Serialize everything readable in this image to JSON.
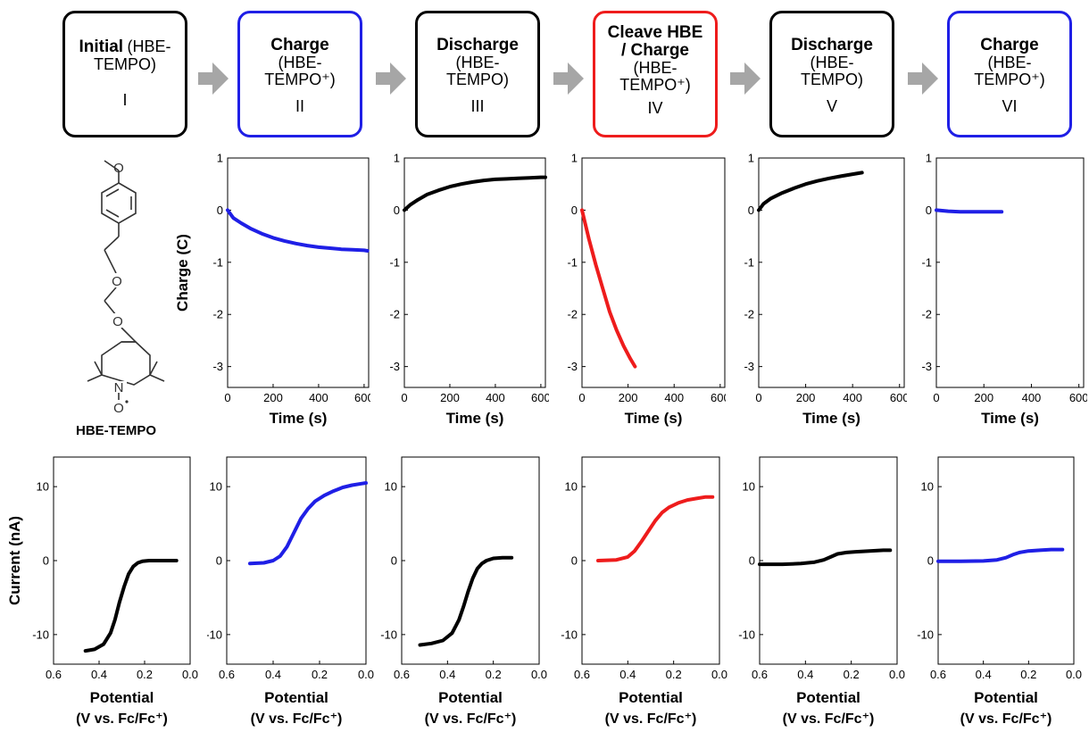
{
  "steps": [
    {
      "title": "Initial",
      "inline_sub": "(HBE-",
      "sub1": "TEMPO)",
      "sub2": "",
      "numeral": "I",
      "color": "#000000"
    },
    {
      "title": "Charge",
      "sub1": "(HBE-",
      "sub2": "TEMPO⁺)",
      "numeral": "II",
      "color": "#1f1fe6"
    },
    {
      "title": "Discharge",
      "sub1": "(HBE-",
      "sub2": "TEMPO)",
      "numeral": "III",
      "color": "#000000"
    },
    {
      "title": "Cleave HBE",
      "title2": "/ Charge",
      "sub1": "(HBE-",
      "sub2": "TEMPO⁺)",
      "numeral": "IV",
      "color": "#ee1c1c"
    },
    {
      "title": "Discharge",
      "sub1": "(HBE-",
      "sub2": "TEMPO)",
      "numeral": "V",
      "color": "#000000"
    },
    {
      "title": "Charge",
      "sub1": "(HBE-",
      "sub2": "TEMPO⁺)",
      "numeral": "VI",
      "color": "#1f1fe6"
    }
  ],
  "molecule": {
    "label": "HBE-TEMPO",
    "atoms": {
      "o1": "O",
      "o2": "O",
      "o3": "O",
      "n": "N",
      "o4": "O"
    }
  },
  "chart_data": [
    {
      "type": "line",
      "panel": "charge-II",
      "color": "#1f1fe6",
      "xlabel": "Time (s)",
      "ylabel": "Charge (C)",
      "xlim": [
        0,
        620
      ],
      "ylim": [
        -3.4,
        1
      ],
      "xticks": [
        0,
        200,
        400,
        600
      ],
      "yticks": [
        1,
        0,
        -1,
        -2,
        -3
      ],
      "x": [
        0,
        25,
        60,
        100,
        150,
        200,
        250,
        300,
        350,
        400,
        450,
        500,
        550,
        600,
        615
      ],
      "y": [
        0,
        -0.15,
        -0.25,
        -0.35,
        -0.45,
        -0.53,
        -0.59,
        -0.64,
        -0.68,
        -0.71,
        -0.73,
        -0.75,
        -0.76,
        -0.77,
        -0.78
      ]
    },
    {
      "type": "line",
      "panel": "charge-III",
      "color": "#000000",
      "xlabel": "Time (s)",
      "ylabel": "",
      "xlim": [
        0,
        620
      ],
      "ylim": [
        -3.4,
        1
      ],
      "xticks": [
        0,
        200,
        400,
        600
      ],
      "yticks": [
        1,
        0,
        -1,
        -2,
        -3
      ],
      "x": [
        0,
        25,
        60,
        100,
        150,
        200,
        250,
        300,
        350,
        400,
        450,
        500,
        550,
        600,
        620
      ],
      "y": [
        0,
        0.1,
        0.2,
        0.3,
        0.38,
        0.45,
        0.5,
        0.54,
        0.57,
        0.59,
        0.6,
        0.61,
        0.62,
        0.63,
        0.63
      ]
    },
    {
      "type": "line",
      "panel": "charge-IV",
      "color": "#ee1c1c",
      "xlabel": "Time (s)",
      "ylabel": "",
      "xlim": [
        0,
        620
      ],
      "ylim": [
        -3.4,
        1
      ],
      "xticks": [
        0,
        200,
        400,
        600
      ],
      "yticks": [
        1,
        0,
        -1,
        -2,
        -3
      ],
      "x": [
        0,
        30,
        60,
        90,
        120,
        150,
        180,
        210,
        230
      ],
      "y": [
        0,
        -0.55,
        -1.05,
        -1.5,
        -1.95,
        -2.3,
        -2.6,
        -2.85,
        -3.0
      ]
    },
    {
      "type": "line",
      "panel": "charge-V",
      "color": "#000000",
      "xlabel": "Time (s)",
      "ylabel": "",
      "xlim": [
        0,
        620
      ],
      "ylim": [
        -3.4,
        1
      ],
      "xticks": [
        0,
        200,
        400,
        600
      ],
      "yticks": [
        1,
        0,
        -1,
        -2,
        -3
      ],
      "x": [
        0,
        20,
        50,
        100,
        150,
        200,
        250,
        300,
        350,
        400,
        440
      ],
      "y": [
        0,
        0.12,
        0.22,
        0.33,
        0.42,
        0.5,
        0.56,
        0.61,
        0.65,
        0.69,
        0.72
      ]
    },
    {
      "type": "line",
      "panel": "charge-VI",
      "color": "#1f1fe6",
      "xlabel": "Time (s)",
      "ylabel": "",
      "xlim": [
        0,
        620
      ],
      "ylim": [
        -3.4,
        1
      ],
      "xticks": [
        0,
        200,
        400,
        600
      ],
      "yticks": [
        1,
        0,
        -1,
        -2,
        -3
      ],
      "x": [
        0,
        50,
        100,
        150,
        200,
        250,
        275
      ],
      "y": [
        0,
        -0.02,
        -0.03,
        -0.03,
        -0.03,
        -0.03,
        -0.03
      ]
    },
    {
      "type": "line",
      "panel": "cv-I",
      "color": "#000000",
      "xlabel": "Potential",
      "xlabel2": "(V vs. Fc/Fc⁺)",
      "ylabel": "Current (nA)",
      "xlim": [
        0.6,
        0.0
      ],
      "ylim": [
        -14,
        14
      ],
      "xticks": [
        0.6,
        0.4,
        0.2,
        0.0
      ],
      "yticks": [
        10,
        0,
        -10
      ],
      "x": [
        0.46,
        0.42,
        0.38,
        0.35,
        0.33,
        0.31,
        0.29,
        0.27,
        0.25,
        0.23,
        0.21,
        0.18,
        0.14,
        0.1,
        0.06
      ],
      "y": [
        -12.2,
        -12.0,
        -11.3,
        -9.8,
        -8.0,
        -5.6,
        -3.5,
        -1.8,
        -0.8,
        -0.3,
        -0.1,
        0,
        0,
        0,
        0
      ]
    },
    {
      "type": "line",
      "panel": "cv-II",
      "color": "#1f1fe6",
      "xlabel": "Potential",
      "xlabel2": "(V vs. Fc/Fc⁺)",
      "ylabel": "",
      "xlim": [
        0.6,
        0.0
      ],
      "ylim": [
        -14,
        14
      ],
      "xticks": [
        0.6,
        0.4,
        0.2,
        0.0
      ],
      "yticks": [
        10,
        0,
        -10
      ],
      "x": [
        0.5,
        0.44,
        0.4,
        0.37,
        0.34,
        0.31,
        0.28,
        0.25,
        0.22,
        0.18,
        0.14,
        0.1,
        0.06,
        0.02,
        0.0
      ],
      "y": [
        -0.4,
        -0.3,
        0,
        0.6,
        1.9,
        3.8,
        5.7,
        7.0,
        8.0,
        8.8,
        9.4,
        9.9,
        10.2,
        10.4,
        10.5
      ]
    },
    {
      "type": "line",
      "panel": "cv-III",
      "color": "#000000",
      "xlabel": "Potential",
      "xlabel2": "(V vs. Fc/Fc⁺)",
      "ylabel": "",
      "xlim": [
        0.6,
        0.0
      ],
      "ylim": [
        -14,
        14
      ],
      "xticks": [
        0.6,
        0.4,
        0.2,
        0.0
      ],
      "yticks": [
        10,
        0,
        -10
      ],
      "x": [
        0.52,
        0.47,
        0.42,
        0.38,
        0.35,
        0.33,
        0.31,
        0.29,
        0.27,
        0.25,
        0.23,
        0.2,
        0.16,
        0.12
      ],
      "y": [
        -11.4,
        -11.2,
        -10.8,
        -9.8,
        -8.0,
        -6.2,
        -4.2,
        -2.4,
        -1.1,
        -0.4,
        0,
        0.3,
        0.4,
        0.4
      ]
    },
    {
      "type": "line",
      "panel": "cv-IV",
      "color": "#ee1c1c",
      "xlabel": "Potential",
      "xlabel2": "(V vs. Fc/Fc⁺)",
      "ylabel": "",
      "xlim": [
        0.6,
        0.0
      ],
      "ylim": [
        -14,
        14
      ],
      "xticks": [
        0.6,
        0.4,
        0.2,
        0.0
      ],
      "yticks": [
        10,
        0,
        -10
      ],
      "x": [
        0.53,
        0.45,
        0.4,
        0.37,
        0.34,
        0.31,
        0.28,
        0.25,
        0.22,
        0.18,
        0.14,
        0.1,
        0.06,
        0.03
      ],
      "y": [
        0,
        0.1,
        0.5,
        1.3,
        2.6,
        4.0,
        5.4,
        6.5,
        7.2,
        7.8,
        8.2,
        8.4,
        8.6,
        8.6
      ]
    },
    {
      "type": "line",
      "panel": "cv-V",
      "color": "#000000",
      "xlabel": "Potential",
      "xlabel2": "(V vs. Fc/Fc⁺)",
      "ylabel": "",
      "xlim": [
        0.6,
        0.0
      ],
      "ylim": [
        -14,
        14
      ],
      "xticks": [
        0.6,
        0.4,
        0.2,
        0.0
      ],
      "yticks": [
        10,
        0,
        -10
      ],
      "x": [
        0.6,
        0.5,
        0.42,
        0.36,
        0.32,
        0.29,
        0.26,
        0.22,
        0.18,
        0.12,
        0.06,
        0.03
      ],
      "y": [
        -0.5,
        -0.5,
        -0.4,
        -0.2,
        0.1,
        0.5,
        0.9,
        1.1,
        1.2,
        1.3,
        1.4,
        1.4
      ]
    },
    {
      "type": "line",
      "panel": "cv-VI",
      "color": "#1f1fe6",
      "xlabel": "Potential",
      "xlabel2": "(V vs. Fc/Fc⁺)",
      "ylabel": "",
      "xlim": [
        0.6,
        0.0
      ],
      "ylim": [
        -14,
        14
      ],
      "xticks": [
        0.6,
        0.4,
        0.2,
        0.0
      ],
      "yticks": [
        10,
        0,
        -10
      ],
      "x": [
        0.6,
        0.5,
        0.4,
        0.34,
        0.3,
        0.27,
        0.24,
        0.2,
        0.15,
        0.1,
        0.05
      ],
      "y": [
        -0.1,
        -0.1,
        -0.05,
        0.1,
        0.4,
        0.8,
        1.1,
        1.3,
        1.4,
        1.5,
        1.5
      ]
    }
  ]
}
